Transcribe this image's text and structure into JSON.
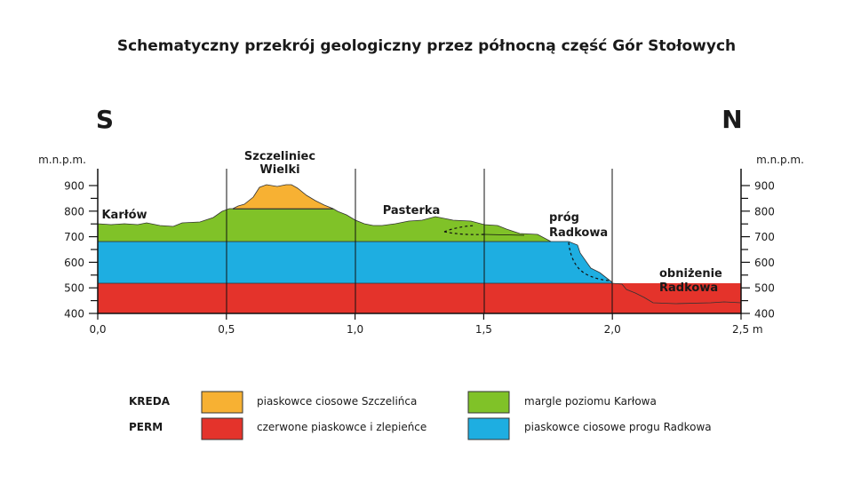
{
  "title": "Schematyczny przekrój geologiczny przez północną część Gór Stołowych",
  "direction_left": "S",
  "direction_right": "N",
  "y_unit_left": "m.n.p.m.",
  "y_unit_right": "m.n.p.m.",
  "y_ticks": [
    "400",
    "500",
    "600",
    "700",
    "800",
    "900"
  ],
  "x_ticks": [
    "0,0",
    "0,5",
    "1,0",
    "1,5",
    "2,0",
    "2,5 m"
  ],
  "places": {
    "karlow": "Karłów",
    "szczeliniec_1": "Szczeliniec",
    "szczeliniec_2": "Wielki",
    "pasterka": "Pasterka",
    "prog_1": "próg",
    "prog_2": "Radkowa",
    "obnizenie_1": "obniżenie",
    "obnizenie_2": "Radkowa"
  },
  "legend": {
    "kreda": "KREDA",
    "perm": "PERM",
    "items": [
      {
        "label": "piaskowce ciosowe Szczelińca",
        "color": "#f7b133"
      },
      {
        "label": "margle poziomu Karłowa",
        "color": "#80c228"
      },
      {
        "label": "czerwone piaskowce i zlepieńce",
        "color": "#e4332b"
      },
      {
        "label": "piaskowce ciosowe progu Radkowa",
        "color": "#1eaee1"
      }
    ]
  }
}
